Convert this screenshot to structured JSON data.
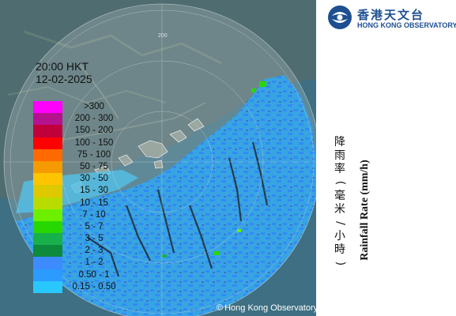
{
  "map": {
    "copyright": "Hong Kong Observatory",
    "range_labels": [
      "200",
      "200"
    ]
  },
  "logo": {
    "name_zh": "香港天文台",
    "name_en": "HONG KONG OBSERVATORY",
    "brand_color": "#1d4f91"
  },
  "timestamp": {
    "time": "20:00 HKT",
    "date": "12-02-2025"
  },
  "legend": {
    "title_en": "Rainfall Rate (mm/h)",
    "title_zh": "降雨率(毫米/小時)",
    "items": [
      {
        "label": ">300",
        "color": "#ff00ff"
      },
      {
        "label": "200 - 300",
        "color": "#b5128f"
      },
      {
        "label": "150 - 200",
        "color": "#c0003a"
      },
      {
        "label": "100 - 150",
        "color": "#ff0000"
      },
      {
        "label": "75 - 100",
        "color": "#ff6a00"
      },
      {
        "label": "50 - 75",
        "color": "#f59a00"
      },
      {
        "label": "30 - 50",
        "color": "#ffc400"
      },
      {
        "label": "15 - 30",
        "color": "#dec800"
      },
      {
        "label": "10 - 15",
        "color": "#b8dc00"
      },
      {
        "label": "7 - 10",
        "color": "#6cf000"
      },
      {
        "label": "5 - 7",
        "color": "#27d800"
      },
      {
        "label": "3 - 5",
        "color": "#18b04a"
      },
      {
        "label": "2 - 3",
        "color": "#0e8a3c"
      },
      {
        "label": "1 - 2",
        "color": "#3d8cff"
      },
      {
        "label": "0.50 - 1",
        "color": "#2b9bff"
      },
      {
        "label": "0.15 - 0.50",
        "color": "#28c8ff"
      }
    ]
  }
}
